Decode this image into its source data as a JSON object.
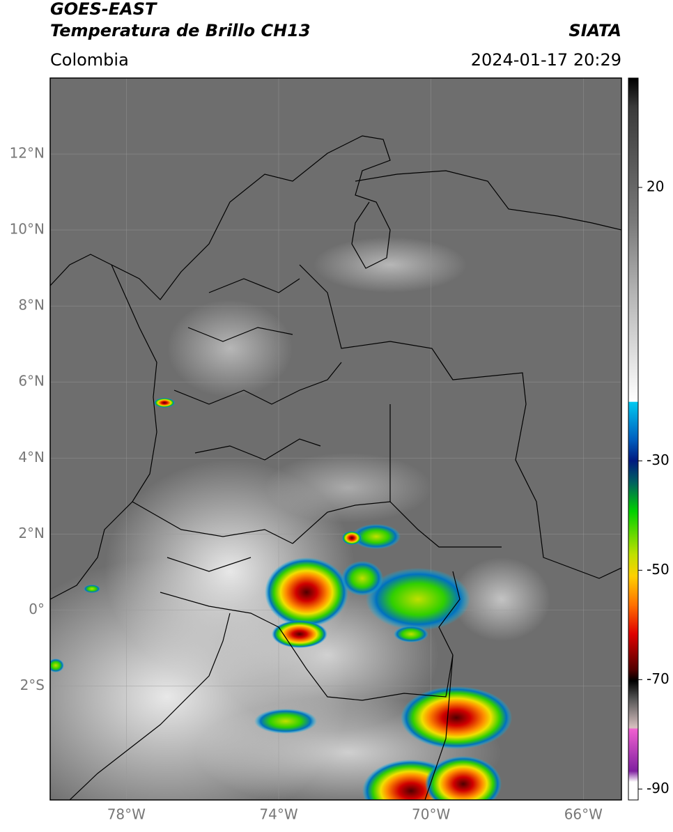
{
  "header": {
    "title": "GOES-EAST",
    "subtitle": "Temperatura de Brillo CH13",
    "source": "SIATA",
    "region": "Colombia",
    "timestamp": "2024-01-17 20:29"
  },
  "map": {
    "latlim": [
      -5,
      14
    ],
    "lonlim": [
      -80,
      -65
    ],
    "lat_ticks": [
      {
        "value": 12,
        "label": "12°N"
      },
      {
        "value": 10,
        "label": "10°N"
      },
      {
        "value": 8,
        "label": "8°N"
      },
      {
        "value": 6,
        "label": "6°N"
      },
      {
        "value": 4,
        "label": "4°N"
      },
      {
        "value": 2,
        "label": "2°N"
      },
      {
        "value": 0,
        "label": "0°"
      },
      {
        "value": -2,
        "label": "2°S"
      }
    ],
    "lon_ticks": [
      {
        "value": -78,
        "label": "78°W"
      },
      {
        "value": -74,
        "label": "74°W"
      },
      {
        "value": -70,
        "label": "70°W"
      },
      {
        "value": -66,
        "label": "66°W"
      }
    ]
  },
  "colorbar": {
    "clim": [
      -92,
      40
    ],
    "ticks": [
      20,
      -30,
      -50,
      -70,
      -90
    ]
  }
}
